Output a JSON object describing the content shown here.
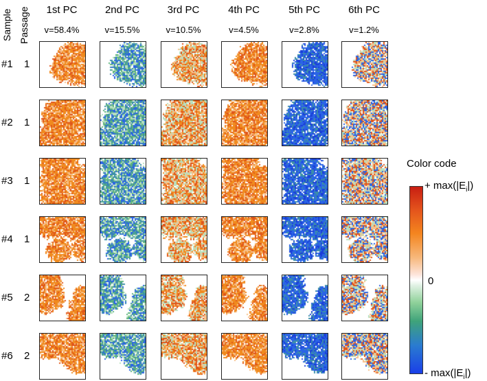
{
  "header": {
    "sample_label": "Sample",
    "passage_label": "Passage"
  },
  "components": [
    {
      "label": "1st PC",
      "variance": "v=58.4%"
    },
    {
      "label": "2nd PC",
      "variance": "v=15.5%"
    },
    {
      "label": "3rd PC",
      "variance": "v=10.5%"
    },
    {
      "label": "4th PC",
      "variance": "v=4.5%"
    },
    {
      "label": "5th PC",
      "variance": "v=2.8%"
    },
    {
      "label": "6th PC",
      "variance": "v=1.2%"
    }
  ],
  "samples": [
    {
      "id": "#1",
      "passage": "1"
    },
    {
      "id": "#2",
      "passage": "1"
    },
    {
      "id": "#3",
      "passage": "1"
    },
    {
      "id": "#4",
      "passage": "1"
    },
    {
      "id": "#5",
      "passage": "2"
    },
    {
      "id": "#6",
      "passage": "2"
    }
  ],
  "colorbar": {
    "title": "Color code",
    "top_label": "+ max(|E",
    "top_sub": "i",
    "top_end": "|)",
    "mid_label": "0",
    "bottom_label": "- max(|E",
    "bottom_sub": "i",
    "bottom_end": "|)"
  },
  "colors": {
    "orange": "#f08a1e",
    "dark_orange": "#e0561a",
    "light_orange": "#f7c08a",
    "blue": "#2a64e6",
    "dark_blue": "#1b3fd8",
    "green": "#5fb47e",
    "light_green": "#b8e0bf",
    "teal": "#3c8fa8"
  }
}
